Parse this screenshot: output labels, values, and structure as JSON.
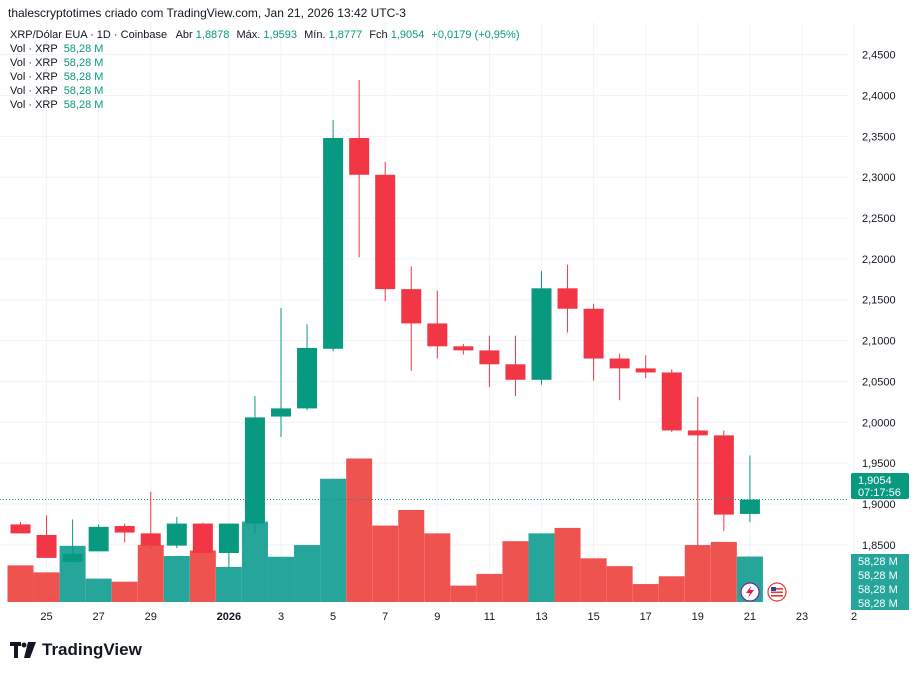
{
  "header": {
    "credit": "thalescryptotimes criado com TradingView.com, Jan 21, 2026 13:42 UTC-3"
  },
  "legend": {
    "symbol": "XRP/Dólar EUA · 1D · Coinbase",
    "open_label": "Abr",
    "open_value": "1,8878",
    "high_label": "Máx.",
    "high_value": "1,9593",
    "low_label": "Mín.",
    "low_value": "1,8777",
    "close_label": "Fch",
    "close_value": "1,9054",
    "change": "+0,0179 (+0,95%)",
    "volume_rows": [
      {
        "label": "Vol · XRP",
        "value": "58,28 M"
      },
      {
        "label": "Vol · XRP",
        "value": "58,28 M"
      },
      {
        "label": "Vol · XRP",
        "value": "58,28 M"
      },
      {
        "label": "Vol · XRP",
        "value": "58,28 M"
      },
      {
        "label": "Vol · XRP",
        "value": "58,28 M"
      }
    ]
  },
  "price_tag": {
    "price": "1,9054",
    "countdown": "07:17:56"
  },
  "volume_tags": [
    "58,28 M",
    "58,28 M",
    "58,28 M",
    "58,28 M"
  ],
  "colors": {
    "up": "#089981",
    "down": "#f23645",
    "up_vol": "#26a69a",
    "down_vol": "#ef5350",
    "grid": "#f0f3fa"
  },
  "footer": {
    "brand": "TradingView"
  },
  "chart_data": {
    "type": "candlestick",
    "y_axis": {
      "ylim": [
        1.78,
        2.49
      ],
      "ticks": [
        1.85,
        1.9,
        1.95,
        2.0,
        2.05,
        2.1,
        2.15,
        2.2,
        2.25,
        2.3,
        2.35,
        2.4,
        2.45
      ],
      "tick_labels": [
        "1,8500",
        "1,9000",
        "1,9500",
        "2,0000",
        "2,0500",
        "2,1000",
        "2,1500",
        "2,2000",
        "2,2500",
        "2,3000",
        "2,3500",
        "2,4000",
        "2,4500"
      ]
    },
    "x_axis": {
      "tick_labels": [
        {
          "index": 1,
          "label": "25"
        },
        {
          "index": 3,
          "label": "27"
        },
        {
          "index": 5,
          "label": "29"
        },
        {
          "index": 8,
          "label": "2026"
        },
        {
          "index": 10,
          "label": "3"
        },
        {
          "index": 12,
          "label": "5"
        },
        {
          "index": 14,
          "label": "7"
        },
        {
          "index": 16,
          "label": "9"
        },
        {
          "index": 18,
          "label": "11"
        },
        {
          "index": 20,
          "label": "13"
        },
        {
          "index": 22,
          "label": "15"
        },
        {
          "index": 24,
          "label": "17"
        },
        {
          "index": 26,
          "label": "19"
        },
        {
          "index": 28,
          "label": "21"
        },
        {
          "index": 30,
          "label": "23"
        },
        {
          "index": 32,
          "label": "2"
        }
      ]
    },
    "candles": [
      {
        "o": 1.875,
        "h": 1.878,
        "l": 1.865,
        "c": 1.864,
        "v": 47
      },
      {
        "o": 1.862,
        "h": 1.886,
        "l": 1.835,
        "c": 1.834,
        "v": 38
      },
      {
        "o": 1.829,
        "h": 1.881,
        "l": 1.828,
        "c": 1.839,
        "v": 72
      },
      {
        "o": 1.842,
        "h": 1.875,
        "l": 1.842,
        "c": 1.872,
        "v": 30
      },
      {
        "o": 1.873,
        "h": 1.876,
        "l": 1.853,
        "c": 1.865,
        "v": 26
      },
      {
        "o": 1.864,
        "h": 1.915,
        "l": 1.845,
        "c": 1.849,
        "v": 73
      },
      {
        "o": 1.849,
        "h": 1.884,
        "l": 1.846,
        "c": 1.876,
        "v": 59
      },
      {
        "o": 1.876,
        "h": 1.877,
        "l": 1.839,
        "c": 1.84,
        "v": 66
      },
      {
        "o": 1.84,
        "h": 1.876,
        "l": 1.822,
        "c": 1.876,
        "v": 45
      },
      {
        "o": 1.876,
        "h": 2.032,
        "l": 1.864,
        "c": 2.006,
        "v": 103
      },
      {
        "o": 2.007,
        "h": 2.14,
        "l": 1.982,
        "c": 2.017,
        "v": 58
      },
      {
        "o": 2.017,
        "h": 2.12,
        "l": 2.015,
        "c": 2.091,
        "v": 73
      },
      {
        "o": 2.09,
        "h": 2.37,
        "l": 2.087,
        "c": 2.348,
        "v": 158
      },
      {
        "o": 2.348,
        "h": 2.419,
        "l": 2.202,
        "c": 2.303,
        "v": 184
      },
      {
        "o": 2.303,
        "h": 2.319,
        "l": 2.148,
        "c": 2.163,
        "v": 98
      },
      {
        "o": 2.163,
        "h": 2.191,
        "l": 2.063,
        "c": 2.121,
        "v": 118
      },
      {
        "o": 2.121,
        "h": 2.161,
        "l": 2.078,
        "c": 2.093,
        "v": 88
      },
      {
        "o": 2.093,
        "h": 2.096,
        "l": 2.083,
        "c": 2.088,
        "v": 21
      },
      {
        "o": 2.088,
        "h": 2.106,
        "l": 2.043,
        "c": 2.071,
        "v": 36
      },
      {
        "o": 2.071,
        "h": 2.106,
        "l": 2.032,
        "c": 2.052,
        "v": 78
      },
      {
        "o": 2.052,
        "h": 2.185,
        "l": 2.046,
        "c": 2.164,
        "v": 88
      },
      {
        "o": 2.164,
        "h": 2.193,
        "l": 2.11,
        "c": 2.139,
        "v": 95
      },
      {
        "o": 2.139,
        "h": 2.145,
        "l": 2.051,
        "c": 2.078,
        "v": 56
      },
      {
        "o": 2.078,
        "h": 2.084,
        "l": 2.027,
        "c": 2.066,
        "v": 46
      },
      {
        "o": 2.066,
        "h": 2.082,
        "l": 2.054,
        "c": 2.061,
        "v": 23
      },
      {
        "o": 2.061,
        "h": 2.065,
        "l": 1.988,
        "c": 1.99,
        "v": 33
      },
      {
        "o": 1.99,
        "h": 2.031,
        "l": 1.849,
        "c": 1.984,
        "v": 73
      },
      {
        "o": 1.984,
        "h": 1.99,
        "l": 1.867,
        "c": 1.887,
        "v": 77
      },
      {
        "o": 1.8878,
        "h": 1.9593,
        "l": 1.8777,
        "c": 1.9054,
        "v": 58.28
      }
    ]
  }
}
